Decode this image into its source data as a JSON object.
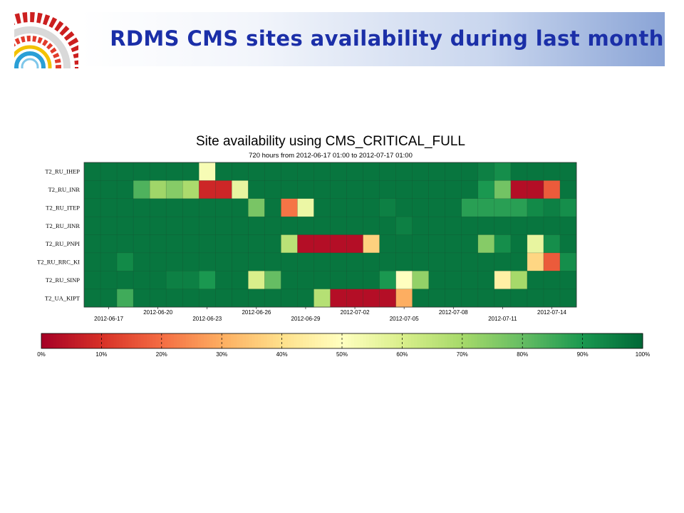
{
  "slide": {
    "title": "RDMS CMS sites availability during last month"
  },
  "colors": {
    "header_gradient": [
      "#ffffff",
      "#8aa4d6"
    ],
    "title": "#1b2fa8",
    "colormap": [
      "#a50026",
      "#d73027",
      "#f46d43",
      "#fdae61",
      "#fee08b",
      "#ffffbf",
      "#d9ef8b",
      "#a6d96a",
      "#66bd63",
      "#1a9850",
      "#006837"
    ]
  },
  "chart_data": {
    "type": "heatmap",
    "title": "Site availability using CMS_CRITICAL_FULL",
    "subtitle": "720 hours from 2012-06-17 01:00 to 2012-07-17 01:00",
    "rows": [
      "T2_RU_IHEP",
      "T2_RU_INR",
      "T2_RU_ITEP",
      "T2_RU_JINR",
      "T2_RU_PNPI",
      "T2_RU_RRC_KI",
      "T2_RU_SINP",
      "T2_UA_KIPT"
    ],
    "x_tick_labels": [
      "2012-06-17",
      "2012-06-20",
      "2012-06-23",
      "2012-06-26",
      "2012-06-29",
      "2012-07-02",
      "2012-07-05",
      "2012-07-08",
      "2012-07-11",
      "2012-07-14"
    ],
    "days": 30,
    "values": [
      [
        97,
        97,
        97,
        97,
        97,
        97,
        97,
        52,
        97,
        97,
        97,
        97,
        97,
        97,
        97,
        97,
        97,
        97,
        97,
        97,
        97,
        97,
        97,
        97,
        95,
        92,
        97,
        97,
        97,
        97
      ],
      [
        97,
        97,
        97,
        83,
        71,
        75,
        69,
        8,
        8,
        56,
        97,
        97,
        97,
        97,
        97,
        97,
        97,
        97,
        97,
        97,
        97,
        97,
        97,
        97,
        90,
        78,
        3,
        3,
        17,
        97
      ],
      [
        97,
        97,
        97,
        97,
        97,
        97,
        97,
        97,
        97,
        97,
        77,
        97,
        21,
        55,
        97,
        97,
        97,
        97,
        95,
        97,
        97,
        97,
        97,
        88,
        88,
        88,
        88,
        93,
        95,
        92
      ],
      [
        97,
        97,
        97,
        97,
        97,
        97,
        97,
        97,
        97,
        97,
        97,
        97,
        97,
        97,
        97,
        97,
        97,
        97,
        97,
        95,
        97,
        97,
        97,
        97,
        97,
        97,
        97,
        97,
        97,
        97
      ],
      [
        97,
        97,
        97,
        97,
        97,
        97,
        97,
        97,
        97,
        97,
        97,
        97,
        66,
        3,
        3,
        3,
        3,
        37,
        97,
        97,
        97,
        97,
        97,
        97,
        75,
        92,
        97,
        56,
        92,
        97
      ],
      [
        97,
        97,
        93,
        97,
        97,
        97,
        97,
        97,
        97,
        97,
        97,
        97,
        97,
        97,
        97,
        97,
        97,
        97,
        97,
        97,
        97,
        97,
        97,
        97,
        97,
        97,
        97,
        38,
        17,
        92
      ],
      [
        97,
        97,
        97,
        97,
        97,
        95,
        95,
        90,
        97,
        97,
        60,
        80,
        97,
        97,
        97,
        97,
        97,
        97,
        90,
        50,
        73,
        97,
        97,
        97,
        97,
        45,
        70,
        97,
        97,
        97
      ],
      [
        97,
        97,
        85,
        97,
        97,
        97,
        97,
        97,
        97,
        97,
        97,
        97,
        97,
        97,
        67,
        3,
        3,
        3,
        3,
        30,
        97,
        97,
        97,
        97,
        97,
        97,
        97,
        97,
        97,
        97
      ]
    ],
    "colorbar": {
      "min": 0,
      "max": 100,
      "tick_labels": [
        "0%",
        "10%",
        "20%",
        "30%",
        "40%",
        "50%",
        "60%",
        "70%",
        "80%",
        "90%",
        "100%"
      ]
    },
    "xlabel": "",
    "ylabel": ""
  }
}
